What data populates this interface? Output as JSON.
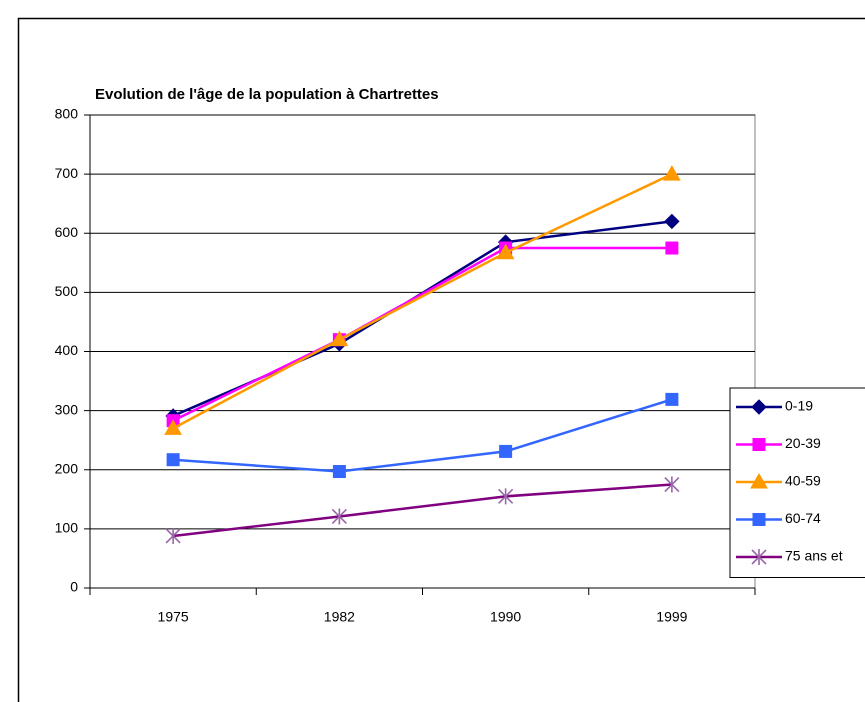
{
  "chart_data": {
    "type": "line",
    "title": "Evolution de l'âge de la population à Chartrettes",
    "categories": [
      "1975",
      "1982",
      "1990",
      "1999"
    ],
    "series": [
      {
        "name": "0-19",
        "color": "#000080",
        "marker": "diamond",
        "values": [
          291,
          413,
          585,
          620
        ]
      },
      {
        "name": "20-39",
        "color": "#ff00ff",
        "marker": "square",
        "values": [
          283,
          420,
          575,
          575
        ]
      },
      {
        "name": "40-59",
        "color": "#ff9900",
        "marker": "triangle",
        "values": [
          270,
          420,
          567,
          700
        ]
      },
      {
        "name": "60-74",
        "color": "#3366ff",
        "marker": "square",
        "values": [
          217,
          197,
          231,
          319
        ]
      },
      {
        "name": "75 ans et",
        "color": "#800080",
        "marker": "star",
        "values": [
          88,
          121,
          155,
          175
        ]
      }
    ],
    "ylim": [
      0,
      800
    ],
    "yticks": [
      0,
      100,
      200,
      300,
      400,
      500,
      600,
      700,
      800
    ],
    "grid": true,
    "legend": "right"
  }
}
